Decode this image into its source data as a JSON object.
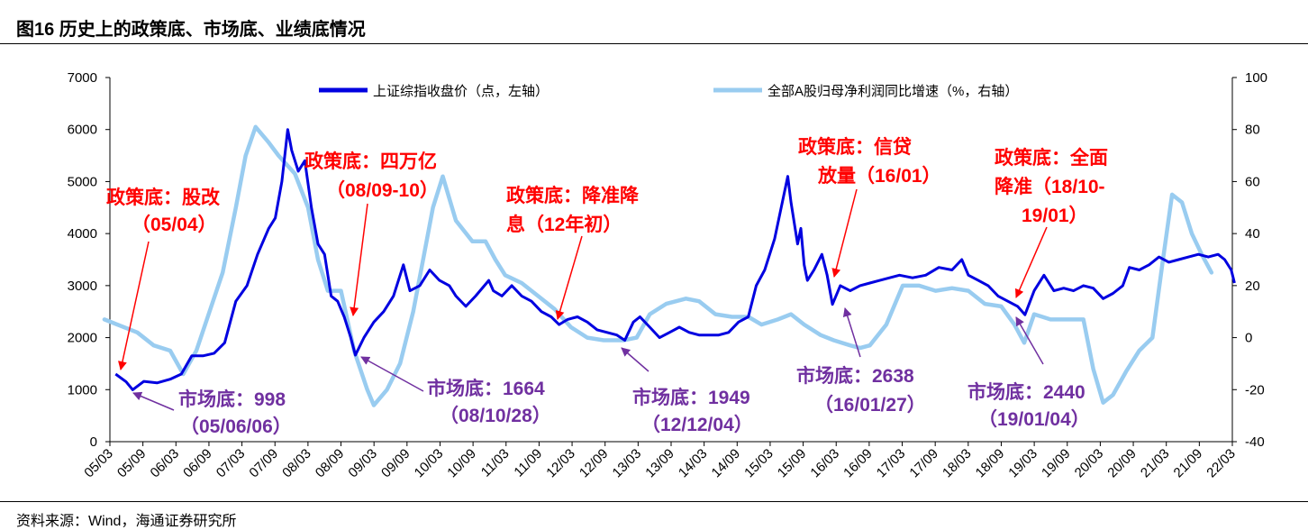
{
  "title": "图16 历史上的政策底、市场底、业绩底情况",
  "source": "资料来源：Wind，海通证券研究所",
  "colors": {
    "index": "#0000e0",
    "profit": "#99ccf0",
    "red": "#ff0000",
    "purple": "#7030a0"
  },
  "chart_data": {
    "type": "line",
    "x_tick_labels": [
      "05/03",
      "05/09",
      "06/03",
      "06/09",
      "07/03",
      "07/09",
      "08/03",
      "08/09",
      "09/03",
      "09/09",
      "10/03",
      "10/09",
      "11/03",
      "11/09",
      "12/03",
      "12/09",
      "13/03",
      "13/09",
      "14/03",
      "14/09",
      "15/03",
      "15/09",
      "16/03",
      "16/09",
      "17/03",
      "17/09",
      "18/03",
      "18/09",
      "19/03",
      "19/09",
      "20/03",
      "20/09",
      "21/03",
      "21/09",
      "22/03"
    ],
    "left_axis": {
      "label": "上证综指收盘价（点，左轴）",
      "ylim": [
        0,
        7000
      ],
      "ticks": [
        0,
        1000,
        2000,
        3000,
        4000,
        5000,
        6000,
        7000
      ]
    },
    "right_axis": {
      "label": "全部A股归母净利润同比增速（%，右轴）",
      "ylim": [
        -40,
        100
      ],
      "ticks": [
        -40,
        -20,
        0,
        20,
        40,
        60,
        80,
        100
      ]
    },
    "series": [
      {
        "name": "上证综指收盘价（点，左轴）",
        "axis": "left",
        "color": "#0000e0",
        "points": [
          [
            2005.17,
            1300
          ],
          [
            2005.33,
            1150
          ],
          [
            2005.43,
            998
          ],
          [
            2005.6,
            1160
          ],
          [
            2005.8,
            1130
          ],
          [
            2006.0,
            1200
          ],
          [
            2006.17,
            1300
          ],
          [
            2006.33,
            1650
          ],
          [
            2006.5,
            1650
          ],
          [
            2006.67,
            1700
          ],
          [
            2006.83,
            1900
          ],
          [
            2007.0,
            2700
          ],
          [
            2007.17,
            3000
          ],
          [
            2007.33,
            3600
          ],
          [
            2007.5,
            4100
          ],
          [
            2007.6,
            4300
          ],
          [
            2007.7,
            5000
          ],
          [
            2007.79,
            6000
          ],
          [
            2007.85,
            5600
          ],
          [
            2007.95,
            5200
          ],
          [
            2008.05,
            5400
          ],
          [
            2008.15,
            4500
          ],
          [
            2008.25,
            3800
          ],
          [
            2008.35,
            3600
          ],
          [
            2008.45,
            2800
          ],
          [
            2008.55,
            2700
          ],
          [
            2008.65,
            2400
          ],
          [
            2008.75,
            2000
          ],
          [
            2008.82,
            1664
          ],
          [
            2008.95,
            2000
          ],
          [
            2009.1,
            2300
          ],
          [
            2009.25,
            2500
          ],
          [
            2009.4,
            2800
          ],
          [
            2009.55,
            3400
          ],
          [
            2009.65,
            2900
          ],
          [
            2009.8,
            3000
          ],
          [
            2009.95,
            3300
          ],
          [
            2010.1,
            3100
          ],
          [
            2010.25,
            3000
          ],
          [
            2010.35,
            2800
          ],
          [
            2010.5,
            2600
          ],
          [
            2010.65,
            2800
          ],
          [
            2010.85,
            3100
          ],
          [
            2010.92,
            2900
          ],
          [
            2011.05,
            2800
          ],
          [
            2011.2,
            3000
          ],
          [
            2011.35,
            2800
          ],
          [
            2011.5,
            2700
          ],
          [
            2011.65,
            2500
          ],
          [
            2011.8,
            2400
          ],
          [
            2011.92,
            2250
          ],
          [
            2012.05,
            2350
          ],
          [
            2012.2,
            2400
          ],
          [
            2012.35,
            2300
          ],
          [
            2012.5,
            2150
          ],
          [
            2012.65,
            2100
          ],
          [
            2012.8,
            2050
          ],
          [
            2012.92,
            1949
          ],
          [
            2013.05,
            2300
          ],
          [
            2013.15,
            2400
          ],
          [
            2013.3,
            2200
          ],
          [
            2013.45,
            2000
          ],
          [
            2013.6,
            2100
          ],
          [
            2013.75,
            2200
          ],
          [
            2013.9,
            2100
          ],
          [
            2014.05,
            2050
          ],
          [
            2014.2,
            2050
          ],
          [
            2014.35,
            2050
          ],
          [
            2014.5,
            2100
          ],
          [
            2014.65,
            2300
          ],
          [
            2014.8,
            2400
          ],
          [
            2014.92,
            3000
          ],
          [
            2015.05,
            3300
          ],
          [
            2015.2,
            3900
          ],
          [
            2015.3,
            4500
          ],
          [
            2015.4,
            5100
          ],
          [
            2015.45,
            4600
          ],
          [
            2015.55,
            3800
          ],
          [
            2015.6,
            4100
          ],
          [
            2015.65,
            3400
          ],
          [
            2015.7,
            3100
          ],
          [
            2015.8,
            3300
          ],
          [
            2015.92,
            3600
          ],
          [
            2016.0,
            3200
          ],
          [
            2016.08,
            2638
          ],
          [
            2016.2,
            3000
          ],
          [
            2016.35,
            2900
          ],
          [
            2016.5,
            3000
          ],
          [
            2016.65,
            3050
          ],
          [
            2016.8,
            3100
          ],
          [
            2016.95,
            3150
          ],
          [
            2017.1,
            3200
          ],
          [
            2017.3,
            3150
          ],
          [
            2017.5,
            3200
          ],
          [
            2017.7,
            3350
          ],
          [
            2017.9,
            3300
          ],
          [
            2018.05,
            3500
          ],
          [
            2018.15,
            3200
          ],
          [
            2018.3,
            3100
          ],
          [
            2018.45,
            3000
          ],
          [
            2018.6,
            2800
          ],
          [
            2018.75,
            2700
          ],
          [
            2018.9,
            2600
          ],
          [
            2019.01,
            2440
          ],
          [
            2019.15,
            2900
          ],
          [
            2019.3,
            3200
          ],
          [
            2019.45,
            2900
          ],
          [
            2019.6,
            2950
          ],
          [
            2019.75,
            2900
          ],
          [
            2019.9,
            3000
          ],
          [
            2020.05,
            2950
          ],
          [
            2020.2,
            2750
          ],
          [
            2020.35,
            2850
          ],
          [
            2020.5,
            3000
          ],
          [
            2020.6,
            3350
          ],
          [
            2020.75,
            3300
          ],
          [
            2020.9,
            3400
          ],
          [
            2021.05,
            3550
          ],
          [
            2021.2,
            3450
          ],
          [
            2021.35,
            3500
          ],
          [
            2021.5,
            3550
          ],
          [
            2021.65,
            3600
          ],
          [
            2021.8,
            3550
          ],
          [
            2021.95,
            3600
          ],
          [
            2022.05,
            3500
          ],
          [
            2022.15,
            3300
          ],
          [
            2022.2,
            3050
          ]
        ]
      },
      {
        "name": "全部A股归母净利润同比增速（%，右轴）",
        "axis": "right",
        "color": "#99ccf0",
        "points": [
          [
            2005.0,
            7
          ],
          [
            2005.5,
            2
          ],
          [
            2005.75,
            -3
          ],
          [
            2006.0,
            -5
          ],
          [
            2006.2,
            -14
          ],
          [
            2006.4,
            -5
          ],
          [
            2006.6,
            10
          ],
          [
            2006.8,
            25
          ],
          [
            2007.0,
            50
          ],
          [
            2007.15,
            70
          ],
          [
            2007.3,
            81
          ],
          [
            2007.5,
            75
          ],
          [
            2007.65,
            70
          ],
          [
            2007.9,
            63
          ],
          [
            2008.1,
            50
          ],
          [
            2008.25,
            30
          ],
          [
            2008.4,
            18
          ],
          [
            2008.6,
            18
          ],
          [
            2008.8,
            -5
          ],
          [
            2009.0,
            -20
          ],
          [
            2009.1,
            -26
          ],
          [
            2009.3,
            -20
          ],
          [
            2009.5,
            -10
          ],
          [
            2009.7,
            10
          ],
          [
            2009.85,
            30
          ],
          [
            2010.0,
            50
          ],
          [
            2010.15,
            62
          ],
          [
            2010.35,
            45
          ],
          [
            2010.6,
            37
          ],
          [
            2010.8,
            37
          ],
          [
            2010.95,
            30
          ],
          [
            2011.1,
            24
          ],
          [
            2011.35,
            21
          ],
          [
            2011.6,
            16
          ],
          [
            2011.85,
            11
          ],
          [
            2012.1,
            4
          ],
          [
            2012.35,
            0
          ],
          [
            2012.6,
            -1
          ],
          [
            2012.9,
            -1
          ],
          [
            2013.1,
            0
          ],
          [
            2013.3,
            9
          ],
          [
            2013.55,
            13
          ],
          [
            2013.85,
            15
          ],
          [
            2014.05,
            14
          ],
          [
            2014.3,
            9
          ],
          [
            2014.55,
            8
          ],
          [
            2014.8,
            8
          ],
          [
            2015.0,
            5
          ],
          [
            2015.25,
            7
          ],
          [
            2015.45,
            9
          ],
          [
            2015.65,
            5
          ],
          [
            2015.9,
            1
          ],
          [
            2016.1,
            -1
          ],
          [
            2016.35,
            -3
          ],
          [
            2016.5,
            -4
          ],
          [
            2016.65,
            -3
          ],
          [
            2016.9,
            5
          ],
          [
            2017.15,
            20
          ],
          [
            2017.4,
            20
          ],
          [
            2017.65,
            18
          ],
          [
            2017.9,
            19
          ],
          [
            2018.15,
            18
          ],
          [
            2018.4,
            13
          ],
          [
            2018.65,
            12
          ],
          [
            2018.85,
            5
          ],
          [
            2019.0,
            -2
          ],
          [
            2019.15,
            9
          ],
          [
            2019.4,
            7
          ],
          [
            2019.65,
            7
          ],
          [
            2019.9,
            7
          ],
          [
            2020.05,
            -12
          ],
          [
            2020.2,
            -25
          ],
          [
            2020.35,
            -22
          ],
          [
            2020.55,
            -13
          ],
          [
            2020.75,
            -5
          ],
          [
            2020.95,
            0
          ],
          [
            2021.1,
            28
          ],
          [
            2021.25,
            55
          ],
          [
            2021.4,
            52
          ],
          [
            2021.55,
            40
          ],
          [
            2021.7,
            32
          ],
          [
            2021.85,
            25
          ]
        ]
      }
    ],
    "annotations": [
      {
        "kind": "policy_bottom",
        "color": "#ff0000",
        "lines": [
          "政策底：股改",
          "（05/04）"
        ]
      },
      {
        "kind": "policy_bottom",
        "color": "#ff0000",
        "lines": [
          "政策底：四万亿",
          "（08/09-10）"
        ]
      },
      {
        "kind": "policy_bottom",
        "color": "#ff0000",
        "lines": [
          "政策底：降准降",
          "息（12年初）"
        ]
      },
      {
        "kind": "policy_bottom",
        "color": "#ff0000",
        "lines": [
          "政策底：信贷",
          "放量（16/01）"
        ]
      },
      {
        "kind": "policy_bottom",
        "color": "#ff0000",
        "lines": [
          "政策底：全面",
          "降准（18/10-",
          "19/01）"
        ]
      },
      {
        "kind": "market_bottom",
        "color": "#7030a0",
        "lines": [
          "市场底：998",
          "（05/06/06）"
        ]
      },
      {
        "kind": "market_bottom",
        "color": "#7030a0",
        "lines": [
          "市场底：1664",
          "（08/10/28）"
        ]
      },
      {
        "kind": "market_bottom",
        "color": "#7030a0",
        "lines": [
          "市场底：1949",
          "（12/12/04）"
        ]
      },
      {
        "kind": "market_bottom",
        "color": "#7030a0",
        "lines": [
          "市场底：2638",
          "（16/01/27）"
        ]
      },
      {
        "kind": "market_bottom",
        "color": "#7030a0",
        "lines": [
          "市场底：2440",
          "（19/01/04）"
        ]
      }
    ]
  }
}
